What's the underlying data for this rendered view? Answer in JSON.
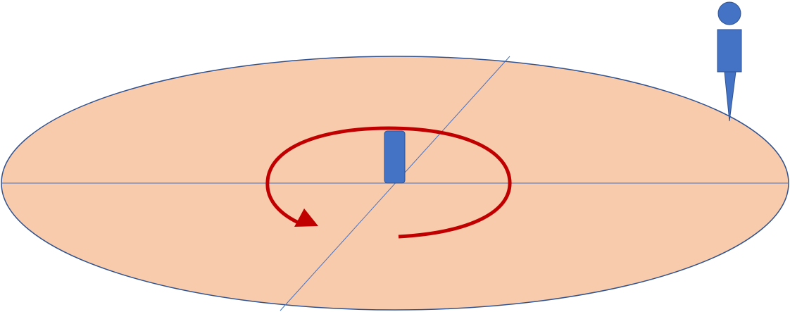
{
  "colors": {
    "disk_fill": "#f8cbad",
    "disk_stroke": "#2f528f",
    "axis_line": "#4472c4",
    "object_fill": "#4472c4",
    "object_stroke": "#2f528f",
    "rotation_arrow": "#c00000",
    "observer_fill": "#4472c4",
    "observer_stroke": "#2f528f"
  },
  "icons": {
    "observer": "person-icon",
    "rotation": "rotation-arrow-icon",
    "center_object": "rectangle-object-icon"
  }
}
